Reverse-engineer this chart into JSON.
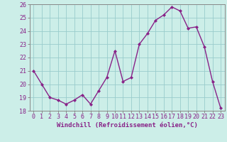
{
  "x": [
    0,
    1,
    2,
    3,
    4,
    5,
    6,
    7,
    8,
    9,
    10,
    11,
    12,
    13,
    14,
    15,
    16,
    17,
    18,
    19,
    20,
    21,
    22,
    23
  ],
  "y": [
    21.0,
    20.0,
    19.0,
    18.8,
    18.5,
    18.8,
    19.2,
    18.5,
    19.5,
    20.5,
    22.5,
    20.2,
    20.5,
    23.0,
    23.8,
    24.8,
    25.2,
    25.8,
    25.5,
    24.2,
    24.3,
    22.8,
    20.2,
    18.2
  ],
  "line_color": "#882288",
  "marker": "D",
  "marker_size": 2.0,
  "bg_color": "#cceee8",
  "grid_color": "#99cccc",
  "xlabel": "Windchill (Refroidissement éolien,°C)",
  "ylim": [
    18,
    26
  ],
  "xlim_min": -0.5,
  "xlim_max": 23.5,
  "yticks": [
    18,
    19,
    20,
    21,
    22,
    23,
    24,
    25,
    26
  ],
  "xticks": [
    0,
    1,
    2,
    3,
    4,
    5,
    6,
    7,
    8,
    9,
    10,
    11,
    12,
    13,
    14,
    15,
    16,
    17,
    18,
    19,
    20,
    21,
    22,
    23
  ],
  "tick_label_color": "#882288",
  "axis_color": "#888888",
  "xlabel_fontsize": 6.5,
  "tick_fontsize": 6.0,
  "linewidth": 1.0
}
